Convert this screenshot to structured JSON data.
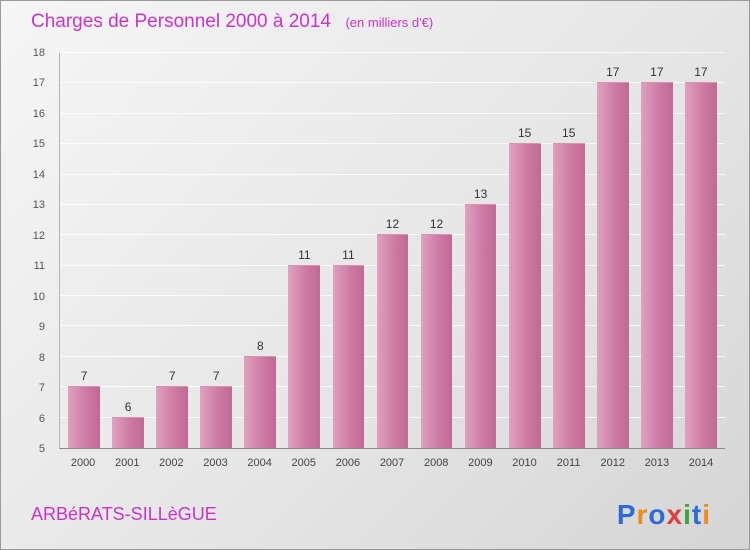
{
  "chart_data": {
    "type": "bar",
    "title": "Charges de Personnel 2000 à 2014",
    "subtitle": "(en milliers d'€)",
    "categories": [
      "2000",
      "2001",
      "2002",
      "2003",
      "2004",
      "2005",
      "2006",
      "2007",
      "2008",
      "2009",
      "2010",
      "2011",
      "2012",
      "2013",
      "2014"
    ],
    "values": [
      7,
      6,
      7,
      7,
      8,
      11,
      11,
      12,
      12,
      13,
      15,
      15,
      17,
      17,
      17
    ],
    "xlabel": "",
    "ylabel": "",
    "ylim": [
      5,
      18
    ],
    "ytick_step": 1,
    "grid": true,
    "legend": false,
    "bar_color_start": "#e0a2bf",
    "bar_color_end": "#c06a93",
    "title_color": "#cc33cc",
    "value_label_color": "#333333"
  },
  "footer": {
    "company": "ARBéRATS-SILLèGUE"
  },
  "logo": {
    "letters": [
      {
        "ch": "P",
        "color": "#2e6bd8"
      },
      {
        "ch": "r",
        "color": "#f08c1e"
      },
      {
        "ch": "o",
        "color": "#2e6bd8"
      },
      {
        "ch": "x",
        "color": "#e03c3c"
      },
      {
        "ch": "i",
        "color": "#3aa63a"
      },
      {
        "ch": "t",
        "color": "#2e6bd8"
      },
      {
        "ch": "i",
        "color": "#f08c1e"
      }
    ]
  }
}
